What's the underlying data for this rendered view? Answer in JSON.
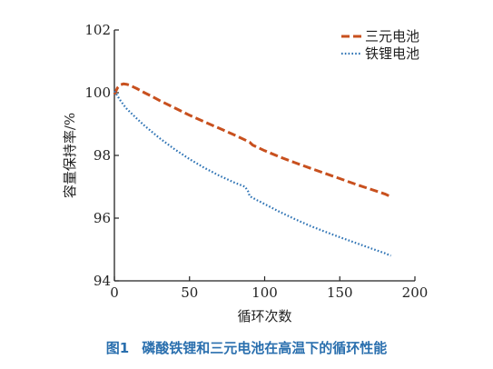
{
  "caption": {
    "figure_label": "图1",
    "text": "磷酸铁锂和三元电池在高温下的循环性能"
  },
  "colors": {
    "ternary": "#c8501e",
    "lfp": "#2f74b5",
    "axis": "#222222",
    "caption": "#2a6fae"
  },
  "chart_data": {
    "type": "line",
    "xlabel": "循环次数",
    "ylabel": "容量保持率/%",
    "xlim": [
      0,
      200
    ],
    "ylim": [
      94,
      102
    ],
    "xticks": [
      0,
      50,
      100,
      150,
      200
    ],
    "yticks": [
      94,
      96,
      98,
      100,
      102
    ],
    "legend_position": "top-right",
    "grid": false,
    "series": [
      {
        "name": "三元电池",
        "style": "dashed",
        "color": "#c8501e",
        "x": [
          0,
          2,
          4,
          6,
          8,
          10,
          15,
          20,
          25,
          30,
          40,
          50,
          60,
          70,
          80,
          88,
          90,
          92,
          100,
          110,
          120,
          130,
          140,
          150,
          160,
          170,
          180,
          184
        ],
        "y": [
          99.95,
          100.15,
          100.25,
          100.28,
          100.27,
          100.24,
          100.13,
          100.0,
          99.88,
          99.75,
          99.52,
          99.28,
          99.07,
          98.86,
          98.65,
          98.47,
          98.42,
          98.33,
          98.15,
          97.95,
          97.77,
          97.6,
          97.43,
          97.26,
          97.09,
          96.93,
          96.77,
          96.68
        ]
      },
      {
        "name": "铁锂电池",
        "style": "dotted",
        "color": "#2f74b5",
        "x": [
          0,
          2,
          4,
          6,
          8,
          10,
          15,
          20,
          25,
          30,
          40,
          50,
          60,
          70,
          80,
          87,
          89,
          90,
          95,
          100,
          110,
          120,
          130,
          140,
          150,
          160,
          170,
          180,
          184
        ],
        "y": [
          100.05,
          99.9,
          99.75,
          99.62,
          99.5,
          99.4,
          99.17,
          98.95,
          98.75,
          98.55,
          98.2,
          97.88,
          97.6,
          97.35,
          97.13,
          97.0,
          96.85,
          96.7,
          96.57,
          96.45,
          96.2,
          95.97,
          95.76,
          95.57,
          95.39,
          95.22,
          95.05,
          94.88,
          94.8
        ]
      }
    ]
  }
}
